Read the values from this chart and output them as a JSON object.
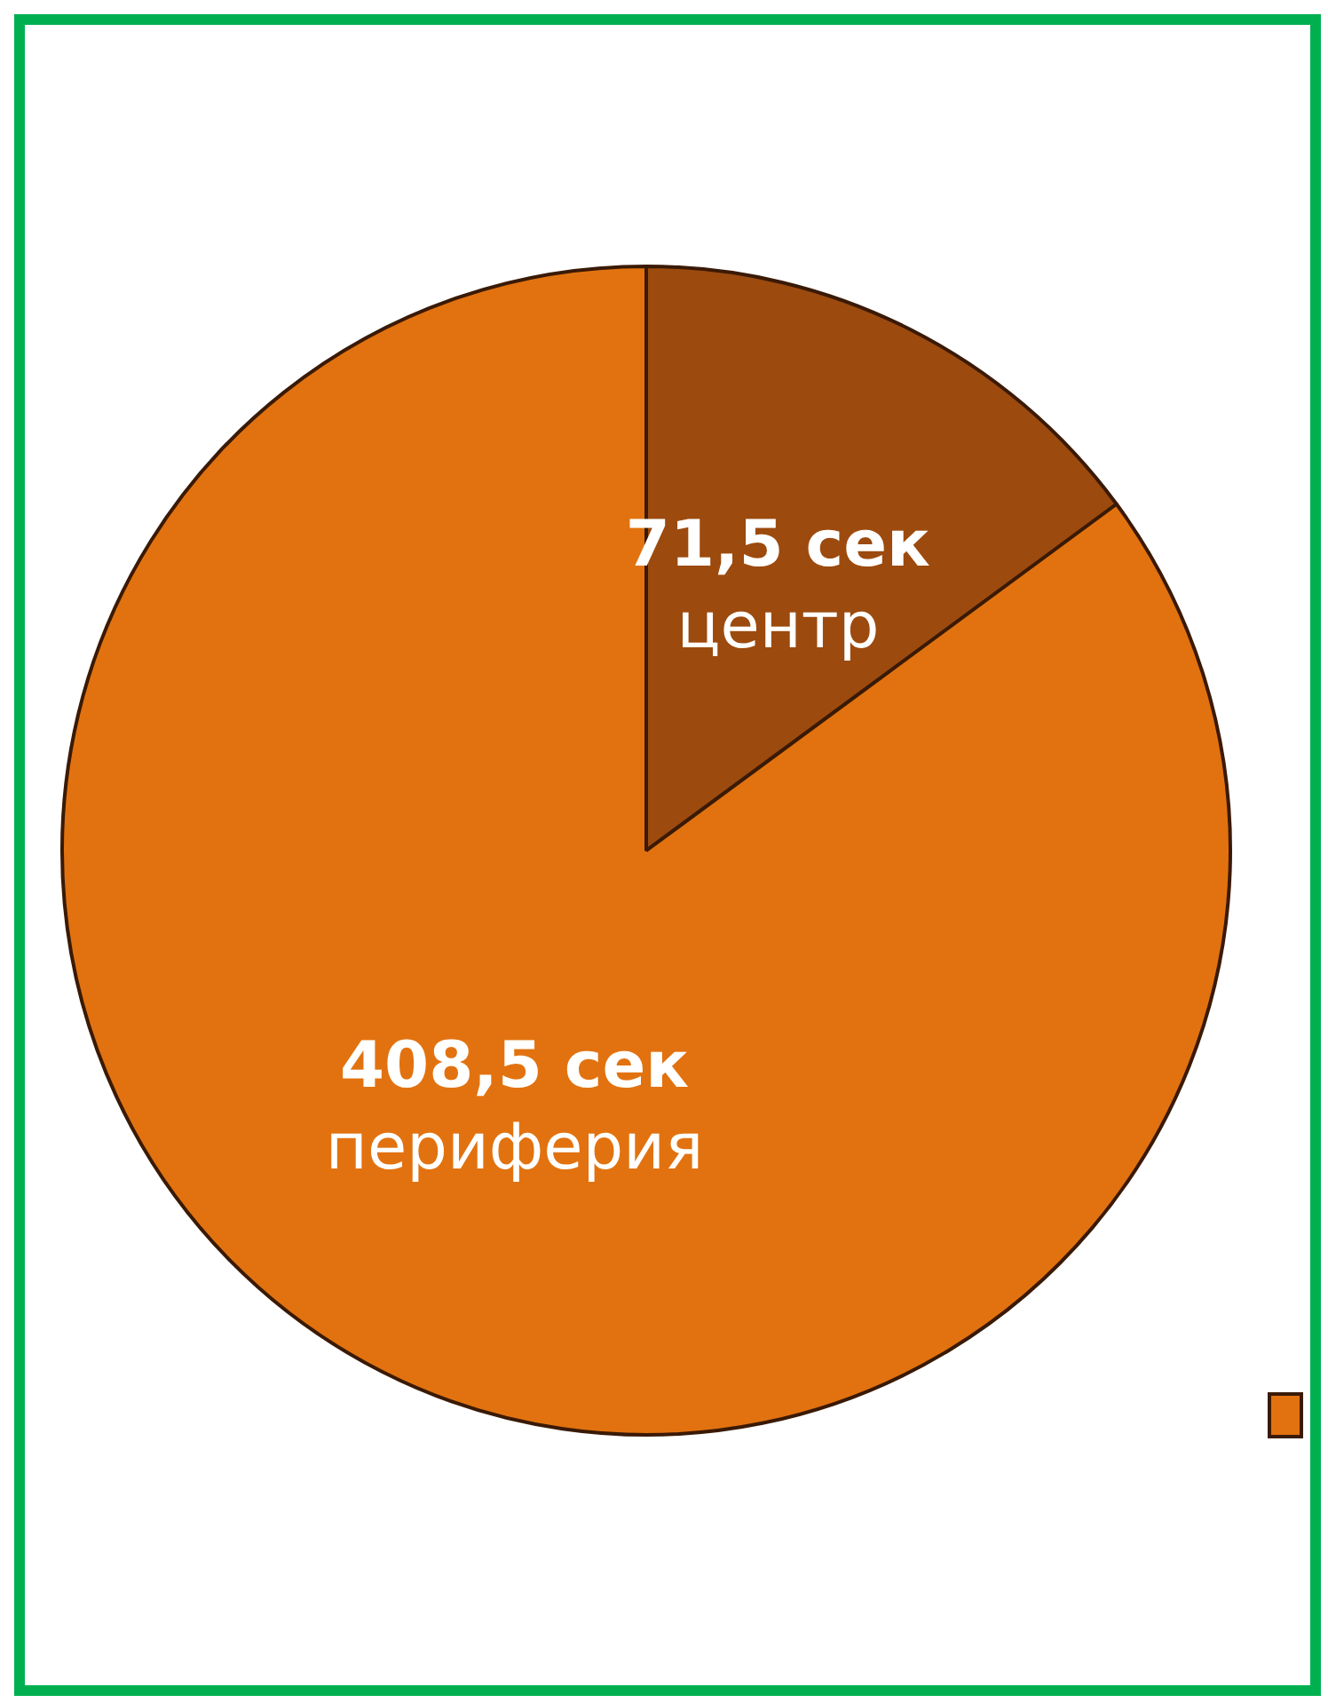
{
  "chart_data": {
    "type": "pie",
    "categories": [
      "центр",
      "периферия"
    ],
    "values": [
      71.5,
      408.5
    ],
    "colors": [
      "#9c4a0e",
      "#e2720f"
    ],
    "value_labels": [
      "71,5 сек",
      "408,5 сек"
    ]
  }
}
